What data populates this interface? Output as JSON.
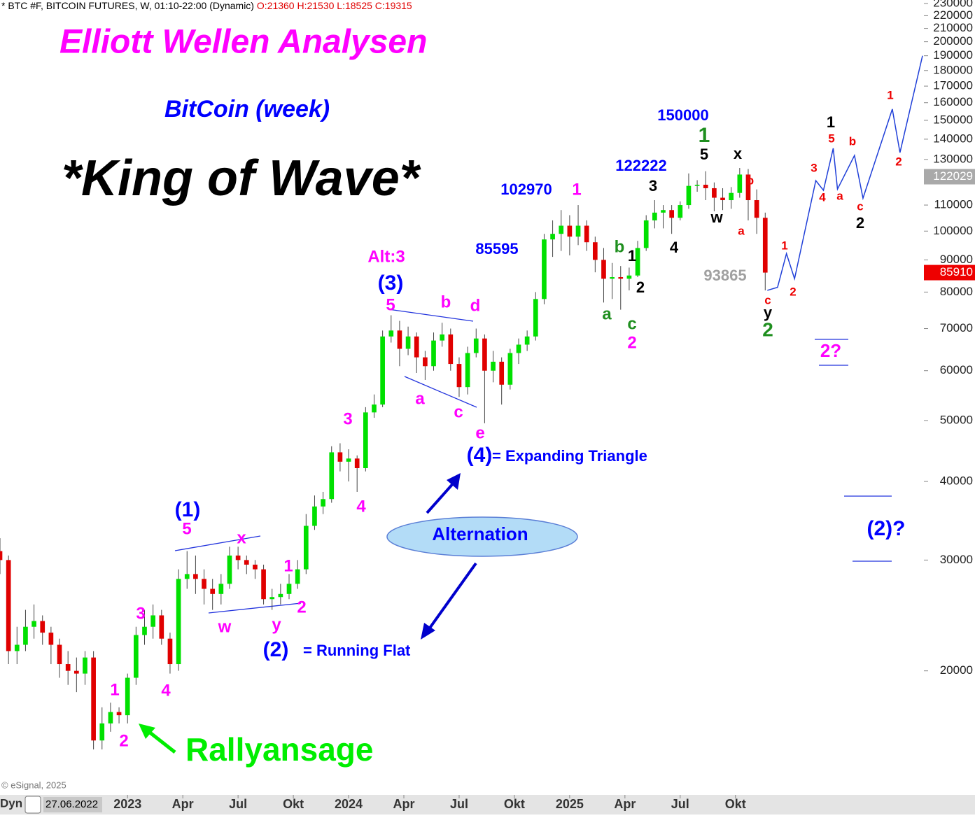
{
  "chart_data": {
    "type": "candlestick",
    "header": {
      "symbol": "* BTC #F, BITCOIN FUTURES, W, 01:10-22:00 (Dynamic)",
      "ohlc": "O:21360 H:21530 L:18525 C:19315"
    },
    "footer": {
      "copyright": "© eSignal, 2025",
      "mode": "Dyn",
      "start_date": "27.06.2022"
    },
    "log_scale": true,
    "grid": false,
    "up_color": "#00e000",
    "down_color": "#e00000",
    "projection_color": "#1f3fd8",
    "ylim": [
      12700,
      233000
    ],
    "yticks": [
      20000,
      30000,
      40000,
      50000,
      60000,
      70000,
      80000,
      90000,
      100000,
      110000,
      120000,
      130000,
      140000,
      150000,
      160000,
      170000,
      180000,
      190000,
      200000,
      210000,
      220000,
      230000
    ],
    "xlim": [
      0,
      217
    ],
    "xticks": [
      {
        "value": 30,
        "label": "2023"
      },
      {
        "value": 43,
        "label": "Apr"
      },
      {
        "value": 56,
        "label": "Jul"
      },
      {
        "value": 69,
        "label": "Okt"
      },
      {
        "value": 82,
        "label": "2024"
      },
      {
        "value": 95,
        "label": "Apr"
      },
      {
        "value": 108,
        "label": "Jul"
      },
      {
        "value": 121,
        "label": "Okt"
      },
      {
        "value": 134,
        "label": "2025"
      },
      {
        "value": 147,
        "label": "Apr"
      },
      {
        "value": 160,
        "label": "Jul"
      },
      {
        "value": 173,
        "label": "Okt"
      }
    ],
    "x": [
      0,
      2,
      4,
      6,
      8,
      10,
      12,
      14,
      16,
      18,
      20,
      22,
      24,
      26,
      28,
      30,
      32,
      34,
      36,
      38,
      40,
      42,
      44,
      46,
      48,
      50,
      52,
      54,
      56,
      58,
      60,
      62,
      64,
      66,
      68,
      70,
      72,
      74,
      76,
      78,
      80,
      82,
      84,
      86,
      88,
      90,
      92,
      94,
      96,
      98,
      100,
      102,
      104,
      106,
      108,
      110,
      112,
      114,
      116,
      118,
      120,
      122,
      124,
      126,
      128,
      130,
      132,
      134,
      136,
      138,
      140,
      142,
      144,
      146,
      148,
      150,
      152,
      154,
      156,
      158,
      160,
      162,
      164,
      166,
      168,
      170,
      172,
      174,
      176,
      178,
      180
    ],
    "ohlc": [
      [
        31000,
        32500,
        28500,
        30000
      ],
      [
        30000,
        30500,
        20500,
        21500
      ],
      [
        21500,
        23500,
        20500,
        22000
      ],
      [
        22000,
        25000,
        21500,
        23500
      ],
      [
        23500,
        25500,
        22500,
        24000
      ],
      [
        24000,
        24500,
        22000,
        23000
      ],
      [
        23000,
        23500,
        20500,
        22000
      ],
      [
        22000,
        22500,
        19500,
        20500
      ],
      [
        20500,
        21500,
        19000,
        20000
      ],
      [
        20000,
        21000,
        18500,
        19800
      ],
      [
        19800,
        21500,
        19000,
        21000
      ],
      [
        21000,
        21500,
        15000,
        15500
      ],
      [
        15500,
        17500,
        15000,
        16500
      ],
      [
        16500,
        17800,
        16000,
        17200
      ],
      [
        17200,
        17500,
        16500,
        17000
      ],
      [
        17000,
        19800,
        16500,
        19500
      ],
      [
        19500,
        23500,
        19000,
        22800
      ],
      [
        22800,
        25000,
        22000,
        23500
      ],
      [
        23500,
        25500,
        22500,
        24500
      ],
      [
        24500,
        25000,
        22000,
        22500
      ],
      [
        22500,
        23000,
        19800,
        20500
      ],
      [
        20500,
        29000,
        20000,
        28000
      ],
      [
        28000,
        31000,
        27000,
        28500
      ],
      [
        28500,
        30500,
        26500,
        28000
      ],
      [
        28000,
        29000,
        25500,
        27000
      ],
      [
        27000,
        28000,
        25000,
        26500
      ],
      [
        26500,
        28500,
        25500,
        27500
      ],
      [
        27500,
        31500,
        27000,
        30500
      ],
      [
        30500,
        31500,
        29000,
        30000
      ],
      [
        30000,
        30500,
        28500,
        29500
      ],
      [
        29500,
        30000,
        28000,
        29000
      ],
      [
        29000,
        29500,
        25500,
        26000
      ],
      [
        26000,
        27000,
        25000,
        26200
      ],
      [
        26200,
        27500,
        25500,
        26500
      ],
      [
        26500,
        28500,
        26000,
        27500
      ],
      [
        27500,
        30000,
        27000,
        29000
      ],
      [
        29000,
        35500,
        28500,
        34000
      ],
      [
        34000,
        38000,
        33500,
        36500
      ],
      [
        36500,
        38500,
        35500,
        37500
      ],
      [
        37500,
        45500,
        37000,
        44500
      ],
      [
        44500,
        46000,
        41500,
        43000
      ],
      [
        43000,
        45000,
        40000,
        43500
      ],
      [
        43500,
        44000,
        38500,
        42000
      ],
      [
        42000,
        52500,
        41500,
        51500
      ],
      [
        51500,
        55000,
        50500,
        53000
      ],
      [
        53000,
        69500,
        52500,
        68000
      ],
      [
        68000,
        73500,
        66500,
        69500
      ],
      [
        69500,
        72000,
        61000,
        65000
      ],
      [
        65000,
        70500,
        63500,
        68000
      ],
      [
        68000,
        69000,
        59500,
        63000
      ],
      [
        63000,
        64500,
        58000,
        61000
      ],
      [
        61000,
        69000,
        60000,
        67000
      ],
      [
        67000,
        71500,
        65500,
        68500
      ],
      [
        68500,
        70000,
        60000,
        61500
      ],
      [
        61500,
        63000,
        54500,
        56500
      ],
      [
        56500,
        65500,
        55000,
        64000
      ],
      [
        64000,
        70000,
        63000,
        67500
      ],
      [
        67500,
        68500,
        49500,
        60000
      ],
      [
        60000,
        64500,
        57500,
        62000
      ],
      [
        62000,
        63000,
        53000,
        57000
      ],
      [
        57000,
        65000,
        56000,
        64000
      ],
      [
        64000,
        67500,
        61500,
        66000
      ],
      [
        66000,
        69500,
        64500,
        68000
      ],
      [
        68000,
        80000,
        67000,
        78000
      ],
      [
        78000,
        99000,
        76500,
        97000
      ],
      [
        97000,
        104000,
        91000,
        99000
      ],
      [
        99000,
        108000,
        93000,
        102000
      ],
      [
        102000,
        106000,
        91500,
        98000
      ],
      [
        98000,
        110000,
        95000,
        102000
      ],
      [
        102000,
        104000,
        93000,
        96000
      ],
      [
        96000,
        98000,
        86000,
        90000
      ],
      [
        90000,
        94000,
        77000,
        84000
      ],
      [
        84000,
        89000,
        78000,
        84500
      ],
      [
        84500,
        88000,
        75000,
        84000
      ],
      [
        84000,
        87500,
        80500,
        85000
      ],
      [
        85000,
        96500,
        84500,
        94000
      ],
      [
        94000,
        106000,
        93000,
        104000
      ],
      [
        104000,
        112000,
        101000,
        107000
      ],
      [
        107000,
        110000,
        101000,
        108000
      ],
      [
        108000,
        110000,
        99000,
        105000
      ],
      [
        105000,
        111500,
        104000,
        110000
      ],
      [
        110000,
        123500,
        108500,
        118000
      ],
      [
        118000,
        120500,
        115500,
        118500
      ],
      [
        118500,
        124500,
        112000,
        117000
      ],
      [
        117000,
        119500,
        107500,
        113000
      ],
      [
        113000,
        117000,
        108000,
        112000
      ],
      [
        112000,
        117500,
        108500,
        115000
      ],
      [
        115000,
        126000,
        113000,
        123000
      ],
      [
        123000,
        125500,
        104000,
        112000
      ],
      [
        112000,
        116500,
        99000,
        105000
      ],
      [
        105000,
        107000,
        80500,
        85910
      ]
    ],
    "projection": {
      "x": [
        180.5,
        182.9,
        185,
        186.9,
        191.9,
        193.7,
        196,
        197,
        201,
        203,
        209.9,
        211.7,
        217
      ],
      "values": [
        80500,
        81400,
        92100,
        84000,
        120300,
        116100,
        135400,
        116600,
        131900,
        112800,
        156300,
        133300,
        190000
      ]
    },
    "reference_price": 122029,
    "annotations": [
      {
        "text": "Elliott Wellen Analysen",
        "color": "#ff00ff"
      },
      {
        "text": "BitCoin (week)",
        "color": "#0000ff"
      },
      {
        "text": "*King of Wave*",
        "color": "#000000"
      },
      {
        "text": "Rallyansage",
        "color": "#00ee00"
      },
      {
        "text": "150000",
        "color": "#0000ff"
      },
      {
        "text": "122222",
        "color": "#0000ff"
      },
      {
        "text": "102970",
        "color": "#0000ff"
      },
      {
        "text": "85595",
        "color": "#0000ff"
      },
      {
        "text": "93865",
        "color": "#a0a0a0"
      },
      {
        "text": "Alt:3",
        "color": "#ff00ff"
      },
      {
        "text": "(3)",
        "color": "#0000ff"
      },
      {
        "text": "(1)",
        "color": "#0000ff"
      },
      {
        "text": "(2)",
        "color": "#0000ff"
      },
      {
        "text": "= Running Flat",
        "color": "#0000ff"
      },
      {
        "text": "(4)",
        "color": "#0000ff"
      },
      {
        "text": "= Expanding Triangle",
        "color": "#0000ff"
      },
      {
        "text": "Alternation",
        "color": "#0000ff"
      },
      {
        "text": "(2)?",
        "color": "#0000ff"
      },
      {
        "text": "2?",
        "color": "#ff00ff"
      },
      {
        "text": "5",
        "color": "#ff00ff"
      },
      {
        "text": "x",
        "color": "#ff00ff"
      },
      {
        "text": "w",
        "color": "#ff00ff"
      },
      {
        "text": "y",
        "color": "#ff00ff"
      },
      {
        "text": "1",
        "color": "#ff00ff"
      },
      {
        "text": "2",
        "color": "#ff00ff"
      },
      {
        "text": "3",
        "color": "#ff00ff"
      },
      {
        "text": "4",
        "color": "#ff00ff"
      },
      {
        "text": "1",
        "color": "#ff00ff"
      },
      {
        "text": "2",
        "color": "#ff00ff"
      },
      {
        "text": "3",
        "color": "#ff00ff"
      },
      {
        "text": "4",
        "color": "#ff00ff"
      },
      {
        "text": "5",
        "color": "#ff00ff"
      },
      {
        "text": "b",
        "color": "#ff00ff"
      },
      {
        "text": "d",
        "color": "#ff00ff"
      },
      {
        "text": "a",
        "color": "#ff00ff"
      },
      {
        "text": "c",
        "color": "#ff00ff"
      },
      {
        "text": "e",
        "color": "#ff00ff"
      },
      {
        "text": "1",
        "color": "#ff00ff"
      },
      {
        "text": "2",
        "color": "#ff00ff"
      },
      {
        "text": "1",
        "color": "#1f8f1f"
      },
      {
        "text": "b",
        "color": "#1f8f1f"
      },
      {
        "text": "a",
        "color": "#1f8f1f"
      },
      {
        "text": "c",
        "color": "#1f8f1f"
      },
      {
        "text": "2",
        "color": "#1f8f1f"
      },
      {
        "text": "5",
        "color": "#000000"
      },
      {
        "text": "x",
        "color": "#000000"
      },
      {
        "text": "w",
        "color": "#000000"
      },
      {
        "text": "3",
        "color": "#000000"
      },
      {
        "text": "4",
        "color": "#000000"
      },
      {
        "text": "1",
        "color": "#000000"
      },
      {
        "text": "2",
        "color": "#000000"
      },
      {
        "text": "y",
        "color": "#000000"
      },
      {
        "text": "1",
        "color": "#000000"
      },
      {
        "text": "2",
        "color": "#000000"
      },
      {
        "text": "b",
        "color": "#ee0000"
      },
      {
        "text": "a",
        "color": "#ee0000"
      },
      {
        "text": "c",
        "color": "#ee0000"
      },
      {
        "text": "1",
        "color": "#ee0000"
      },
      {
        "text": "2",
        "color": "#ee0000"
      },
      {
        "text": "3",
        "color": "#ee0000"
      },
      {
        "text": "4",
        "color": "#ee0000"
      },
      {
        "text": "5",
        "color": "#ee0000"
      },
      {
        "text": "a",
        "color": "#ee0000"
      },
      {
        "text": "b",
        "color": "#ee0000"
      },
      {
        "text": "c",
        "color": "#ee0000"
      },
      {
        "text": "1",
        "color": "#ee0000"
      },
      {
        "text": "2",
        "color": "#ee0000"
      }
    ]
  }
}
